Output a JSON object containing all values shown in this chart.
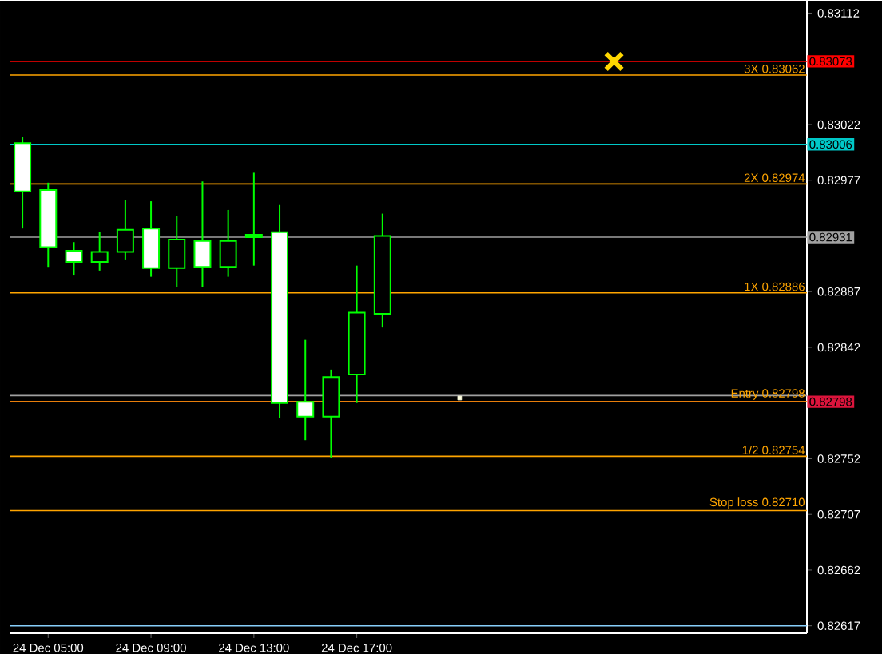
{
  "chart_data": {
    "type": "candlestick",
    "categories": [
      null,
      "24 Dec 05:00",
      null,
      null,
      null,
      "24 Dec 09:00",
      null,
      null,
      null,
      "24 Dec 13:00",
      null,
      null,
      null,
      "24 Dec 17:00",
      null,
      null,
      null,
      null,
      null,
      null,
      null,
      null,
      null,
      null,
      null,
      null,
      null,
      null,
      null,
      null,
      null
    ],
    "ylim": [
      0.82611,
      0.83122
    ],
    "yticks": [
      0.83112,
      0.83022,
      0.82977,
      0.82887,
      0.82842,
      0.82752,
      0.82707,
      0.82662,
      0.82617
    ],
    "series": [
      {
        "color": "#00ff00",
        "colors": [
          "#ffffff",
          "#ffffff",
          "#ffffff",
          "#000000",
          "#000000",
          "#ffffff",
          "#000000",
          "#ffffff",
          "#000000",
          "#000000",
          "#ffffff",
          "#ffffff",
          "#000000",
          "#000000",
          "#000000",
          null,
          null,
          null,
          null,
          null,
          null,
          null,
          null,
          null,
          null,
          null,
          null,
          null,
          null,
          null,
          null
        ],
        "ohlc": [
          [
            0.83007,
            0.83012,
            0.82938,
            0.82968
          ],
          [
            0.82969,
            0.82975,
            0.82907,
            0.82923
          ],
          [
            0.8292,
            0.82927,
            0.829,
            0.82911
          ],
          [
            0.82911,
            0.82935,
            0.82904,
            0.82919
          ],
          [
            0.82919,
            0.82961,
            0.82913,
            0.82937
          ],
          [
            0.82938,
            0.8296,
            0.82899,
            0.82906
          ],
          [
            0.82906,
            0.82948,
            0.82891,
            0.82929
          ],
          [
            0.82928,
            0.82976,
            0.82891,
            0.82907
          ],
          [
            0.82907,
            0.82953,
            0.82899,
            0.82928
          ],
          [
            0.82931,
            0.82983,
            0.82908,
            0.82933
          ],
          [
            0.82935,
            0.82957,
            0.82785,
            0.82797
          ],
          [
            0.82798,
            0.82848,
            0.82767,
            0.82786
          ],
          [
            0.82786,
            0.82824,
            0.82753,
            0.82818
          ],
          [
            0.8282,
            0.82908,
            0.82797,
            0.8287
          ],
          [
            0.82869,
            0.8295,
            0.82858,
            0.82932
          ],
          null,
          null,
          null,
          null,
          null,
          null,
          null,
          null,
          null,
          null,
          null,
          null,
          null,
          null,
          null,
          null
        ]
      },
      {
        "type": "scatter",
        "marker": "cross",
        "color": "#ffd700",
        "values": [
          null,
          null,
          null,
          null,
          null,
          null,
          null,
          null,
          null,
          null,
          null,
          null,
          null,
          null,
          null,
          null,
          null,
          null,
          null,
          null,
          null,
          null,
          null,
          0.83073,
          null,
          null,
          null,
          null,
          null,
          null,
          null
        ]
      },
      {
        "type": "scatter",
        "marker": "square",
        "color": "#ffffe0",
        "values": [
          null,
          null,
          null,
          null,
          null,
          null,
          null,
          null,
          null,
          null,
          null,
          null,
          null,
          null,
          null,
          null,
          null,
          0.82801,
          null,
          null,
          null,
          null,
          null,
          null,
          null,
          null,
          null,
          null,
          null,
          null,
          null
        ]
      }
    ],
    "ref_lines": [
      {
        "axis": "y",
        "value": 0.83073,
        "label": "0.83073",
        "color": "#ff0000"
      },
      {
        "axis": "y",
        "value": 0.83062,
        "label": "3X 0.83062",
        "color": "#ffa500"
      },
      {
        "axis": "y",
        "value": 0.83006,
        "label": "0.83006",
        "color": "#00c8c8"
      },
      {
        "axis": "y",
        "value": 0.82974,
        "label": "2X 0.82974",
        "color": "#ffa500"
      },
      {
        "axis": "y",
        "value": 0.82931,
        "label": "0.82931",
        "color": "#a0a0a0"
      },
      {
        "axis": "y",
        "value": 0.82886,
        "label": "1X 0.82886",
        "color": "#ffa500"
      },
      {
        "axis": "y",
        "value": 0.82803,
        "color": "#a0a0a0"
      },
      {
        "axis": "y",
        "value": 0.82798,
        "label": "0.82798",
        "color": "#dc143c"
      },
      {
        "axis": "y",
        "value": 0.82798,
        "label": "Entry 0.82798",
        "color": "#ffa500"
      },
      {
        "axis": "y",
        "value": 0.82754,
        "label": "1/2 0.82754",
        "color": "#ffa500"
      },
      {
        "axis": "y",
        "value": 0.8271,
        "label": "Stop loss 0.82710",
        "color": "#ffa500"
      },
      {
        "axis": "y",
        "value": 0.82617,
        "color": "#87cefa"
      }
    ]
  }
}
